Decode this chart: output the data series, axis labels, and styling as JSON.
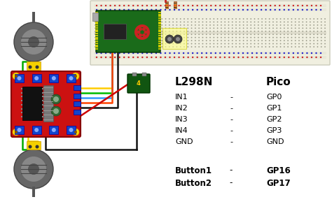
{
  "bg_color": "#ffffff",
  "header_left": "L298N",
  "header_right": "Pico",
  "rows": [
    [
      "IN1",
      "-",
      "GP0"
    ],
    [
      "IN2",
      "-",
      "GP1"
    ],
    [
      "IN3",
      "-",
      "GP2"
    ],
    [
      "IN4",
      "-",
      "GP3"
    ],
    [
      "GND",
      "-",
      "GND"
    ]
  ],
  "button_rows": [
    [
      "Button1",
      "-",
      "GP16"
    ],
    [
      "Button2",
      "-",
      "GP17"
    ]
  ],
  "header_fontsize": 11,
  "row_fontsize": 8,
  "button_fontsize": 8.5,
  "text_color": "#000000",
  "figsize": [
    4.74,
    3.02
  ],
  "dpi": 100,
  "breadboard_color": "#f5f5e8",
  "breadboard_border": "#bbbbaa",
  "pico_color": "#1a6b1a",
  "l298n_color": "#cc1111",
  "motor_gray": "#606060",
  "motor_inner": "#909090",
  "yellow_conn": "#f5d000",
  "blue_term": "#1144cc",
  "wire_colors_main": [
    "#ffcc00",
    "#00bb00",
    "#3399ff",
    "#ff0000"
  ],
  "wire_black": "#111111",
  "wire_red": "#cc0000"
}
